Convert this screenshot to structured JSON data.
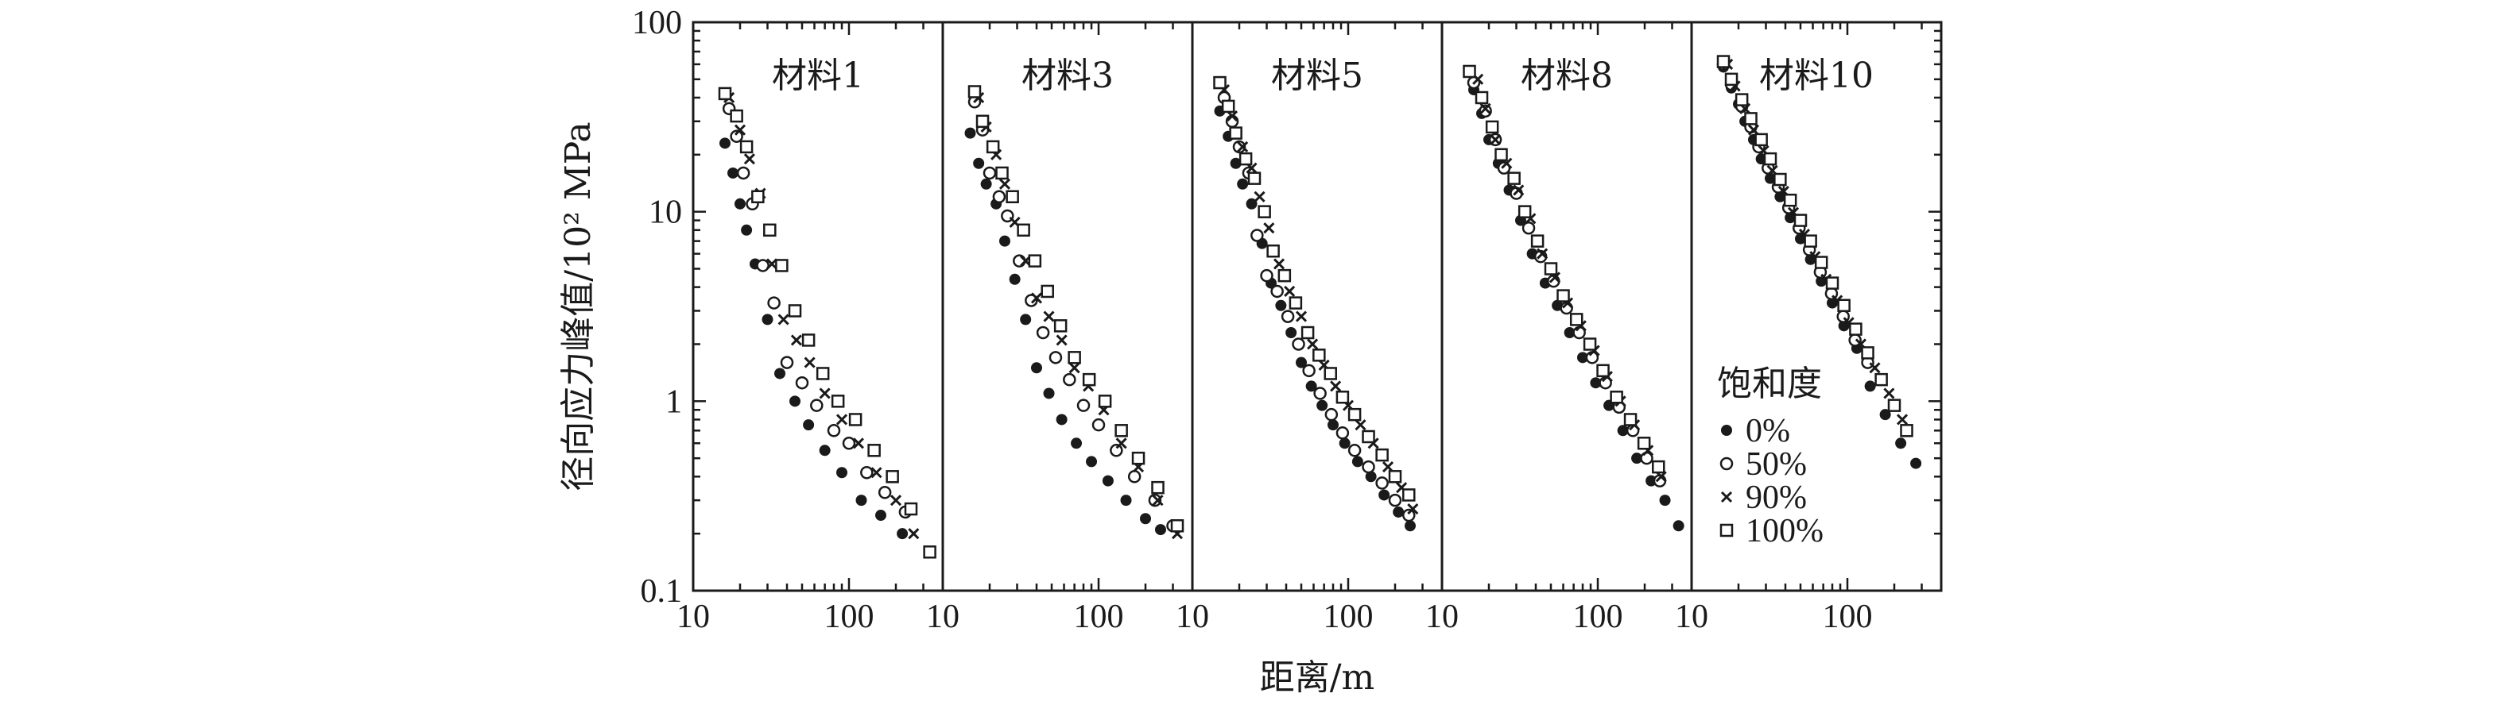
{
  "chart_data": {
    "type": "scatter",
    "xlabel": "距离/m",
    "ylabel": "径向应力峰值/10² MPa",
    "xscale": "log",
    "yscale": "log",
    "ylim": [
      0.1,
      100
    ],
    "y_tick_labels": [
      "100",
      "10",
      "1",
      "0.1"
    ],
    "x_tick_labels": [
      "10",
      "100"
    ],
    "grid": false,
    "legend": {
      "title": "饱和度",
      "placement": "lower-right of last panel",
      "entries": [
        {
          "label": "0%",
          "marker": "filled-circle"
        },
        {
          "label": "50%",
          "marker": "open-circle"
        },
        {
          "label": "90%",
          "marker": "cross"
        },
        {
          "label": "100%",
          "marker": "open-square"
        }
      ]
    },
    "panels": [
      {
        "title": "材料1",
        "xlim": [
          10,
          400
        ],
        "series": [
          {
            "name": "0%",
            "x": [
              16,
              18,
              20,
              22,
              25,
              30,
              36,
              45,
              55,
              70,
              90,
              120,
              160,
              220
            ],
            "y": [
              23,
              16,
              11,
              8,
              5.3,
              2.7,
              1.4,
              1.0,
              0.75,
              0.55,
              0.42,
              0.3,
              0.25,
              0.2
            ]
          },
          {
            "name": "50%",
            "x": [
              17,
              19,
              21,
              24,
              28,
              33,
              40,
              50,
              62,
              80,
              100,
              130,
              170,
              230
            ],
            "y": [
              35,
              25,
              16,
              11,
              5.2,
              3.3,
              1.6,
              1.25,
              0.95,
              0.7,
              0.6,
              0.42,
              0.33,
              0.26
            ]
          },
          {
            "name": "90%",
            "x": [
              17,
              20,
              23,
              27,
              32,
              38,
              46,
              56,
              70,
              90,
              115,
              150,
              200,
              260
            ],
            "y": [
              40,
              27,
              19,
              12.5,
              5.3,
              2.7,
              2.1,
              1.6,
              1.1,
              0.8,
              0.6,
              0.42,
              0.3,
              0.2
            ]
          },
          {
            "name": "100%",
            "x": [
              16,
              19,
              22,
              26,
              31,
              37,
              45,
              55,
              68,
              85,
              110,
              145,
              190,
              250,
              330
            ],
            "y": [
              42,
              32,
              22,
              12,
              8,
              5.2,
              3.0,
              2.1,
              1.4,
              1.0,
              0.8,
              0.55,
              0.4,
              0.27,
              0.16
            ]
          }
        ]
      },
      {
        "title": "材料3",
        "xlim": [
          10,
          400
        ],
        "series": [
          {
            "name": "0%",
            "x": [
              15,
              17,
              19,
              22,
              25,
              29,
              34,
              40,
              48,
              58,
              72,
              90,
              115,
              150,
              200,
              250
            ],
            "y": [
              26,
              18,
              14,
              11,
              7,
              4.4,
              2.7,
              1.5,
              1.1,
              0.8,
              0.6,
              0.48,
              0.38,
              0.3,
              0.24,
              0.21
            ]
          },
          {
            "name": "50%",
            "x": [
              16,
              18,
              20,
              23,
              26,
              31,
              37,
              44,
              53,
              65,
              80,
              100,
              130,
              170,
              230,
              300
            ],
            "y": [
              38,
              27,
              16,
              12,
              9.5,
              5.5,
              3.4,
              2.3,
              1.7,
              1.3,
              0.95,
              0.75,
              0.55,
              0.4,
              0.3,
              0.22
            ]
          },
          {
            "name": "90%",
            "x": [
              17,
              19,
              22,
              25,
              29,
              34,
              40,
              48,
              58,
              70,
              86,
              108,
              140,
              180,
              240,
              320
            ],
            "y": [
              40,
              28,
              20,
              14,
              8.8,
              5.5,
              3.5,
              2.8,
              2.1,
              1.5,
              1.2,
              0.9,
              0.6,
              0.45,
              0.3,
              0.2
            ]
          },
          {
            "name": "100%",
            "x": [
              16,
              18,
              21,
              24,
              28,
              33,
              39,
              47,
              57,
              70,
              87,
              110,
              140,
              180,
              240,
              320
            ],
            "y": [
              43,
              30,
              22,
              16,
              12,
              8,
              5.5,
              3.8,
              2.5,
              1.7,
              1.3,
              1.0,
              0.7,
              0.5,
              0.35,
              0.22
            ]
          }
        ]
      },
      {
        "title": "材料5",
        "xlim": [
          10,
          400
        ],
        "series": [
          {
            "name": "0%",
            "x": [
              15,
              17,
              19,
              21,
              24,
              28,
              32,
              37,
              43,
              50,
              58,
              68,
              80,
              95,
              115,
              140,
              170,
              210,
              250
            ],
            "y": [
              34,
              25,
              18,
              14,
              11,
              6.8,
              4.2,
              3.2,
              2.3,
              1.6,
              1.2,
              0.95,
              0.75,
              0.6,
              0.48,
              0.4,
              0.32,
              0.26,
              0.22
            ]
          },
          {
            "name": "50%",
            "x": [
              16,
              18,
              20,
              23,
              26,
              30,
              35,
              41,
              48,
              56,
              66,
              78,
              92,
              110,
              135,
              165,
              200,
              245
            ],
            "y": [
              40,
              30,
              22,
              16,
              7.5,
              4.6,
              3.8,
              2.8,
              2.0,
              1.45,
              1.1,
              0.85,
              0.68,
              0.55,
              0.45,
              0.37,
              0.3,
              0.25
            ]
          },
          {
            "name": "90%",
            "x": [
              16,
              18,
              21,
              24,
              27,
              31,
              36,
              42,
              50,
              59,
              70,
              83,
              100,
              120,
              145,
              180,
              220,
              260
            ],
            "y": [
              44,
              32,
              22,
              17,
              12,
              8.2,
              5.3,
              3.8,
              2.8,
              2.0,
              1.55,
              1.2,
              0.95,
              0.75,
              0.6,
              0.45,
              0.35,
              0.27
            ]
          },
          {
            "name": "100%",
            "x": [
              15,
              17,
              19,
              22,
              25,
              29,
              33,
              39,
              46,
              55,
              65,
              77,
              92,
              110,
              135,
              165,
              200,
              245
            ],
            "y": [
              48,
              36,
              26,
              19,
              15,
              10,
              6.2,
              4.6,
              3.3,
              2.3,
              1.75,
              1.4,
              1.05,
              0.85,
              0.65,
              0.52,
              0.4,
              0.32
            ]
          }
        ]
      },
      {
        "title": "材料8",
        "xlim": [
          10,
          400
        ],
        "series": [
          {
            "name": "0%",
            "x": [
              16,
              18,
              20,
              23,
              27,
              32,
              38,
              46,
              55,
              66,
              80,
              97,
              118,
              145,
              178,
              220,
              270,
              330
            ],
            "y": [
              44,
              33,
              24,
              18,
              13,
              9.0,
              6.0,
              4.2,
              3.2,
              2.3,
              1.7,
              1.25,
              0.95,
              0.7,
              0.5,
              0.38,
              0.3,
              0.22
            ]
          },
          {
            "name": "50%",
            "x": [
              16,
              19,
              22,
              25,
              30,
              36,
              43,
              52,
              63,
              76,
              92,
              112,
              137,
              168,
              206,
              250
            ],
            "y": [
              48,
              34,
              24,
              17,
              12.5,
              8.2,
              5.8,
              4.3,
              3.1,
              2.3,
              1.7,
              1.25,
              0.93,
              0.7,
              0.5,
              0.38
            ]
          },
          {
            "name": "90%",
            "x": [
              17,
              19,
              22,
              26,
              31,
              37,
              44,
              53,
              64,
              78,
              95,
              115,
              140,
              172,
              210,
              255
            ],
            "y": [
              50,
              35,
              24,
              18,
              13,
              9.2,
              6.0,
              4.5,
              3.3,
              2.5,
              1.85,
              1.35,
              1.0,
              0.75,
              0.55,
              0.4
            ]
          },
          {
            "name": "100%",
            "x": [
              15,
              18,
              21,
              24,
              29,
              34,
              41,
              50,
              60,
              73,
              89,
              108,
              132,
              162,
              198,
              245
            ],
            "y": [
              55,
              40,
              28,
              20,
              15,
              10,
              7,
              5.0,
              3.6,
              2.7,
              2.0,
              1.45,
              1.05,
              0.8,
              0.6,
              0.45
            ]
          }
        ]
      },
      {
        "title": "材料10",
        "xlim": [
          10,
          400
        ],
        "series": [
          {
            "name": "0%",
            "x": [
              16,
              18,
              20,
              22,
              25,
              28,
              32,
              37,
              43,
              50,
              58,
              68,
              80,
              95,
              115,
              140,
              175,
              220,
              275
            ],
            "y": [
              58,
              45,
              37,
              30,
              24,
              19,
              15,
              12,
              9.3,
              7.2,
              5.6,
              4.3,
              3.3,
              2.5,
              1.9,
              1.2,
              0.85,
              0.6,
              0.47
            ]
          },
          {
            "name": "50%",
            "x": [
              16,
              18,
              21,
              24,
              27,
              31,
              36,
              42,
              49,
              57,
              67,
              79,
              94,
              112,
              135
            ],
            "y": [
              60,
              47,
              36,
              28,
              22,
              17,
              13.5,
              10.5,
              8.2,
              6.3,
              4.8,
              3.7,
              2.8,
              2.1,
              1.6
            ]
          },
          {
            "name": "90%",
            "x": [
              17,
              19,
              22,
              25,
              29,
              33,
              39,
              45,
              53,
              62,
              73,
              86,
              102,
              122,
              150,
              185,
              225
            ],
            "y": [
              60,
              46,
              35,
              27,
              21,
              16.5,
              12.8,
              9.9,
              7.6,
              5.8,
              4.4,
              3.4,
              2.6,
              2.0,
              1.5,
              1.1,
              0.8
            ]
          },
          {
            "name": "100%",
            "x": [
              16,
              18,
              21,
              24,
              28,
              32,
              37,
              43,
              50,
              58,
              68,
              80,
              95,
              113,
              135,
              165,
              200,
              240
            ],
            "y": [
              62,
              50,
              39,
              31,
              24,
              19,
              14.8,
              11.5,
              9.0,
              7.0,
              5.4,
              4.2,
              3.2,
              2.4,
              1.8,
              1.3,
              0.95,
              0.7
            ]
          }
        ]
      }
    ]
  }
}
